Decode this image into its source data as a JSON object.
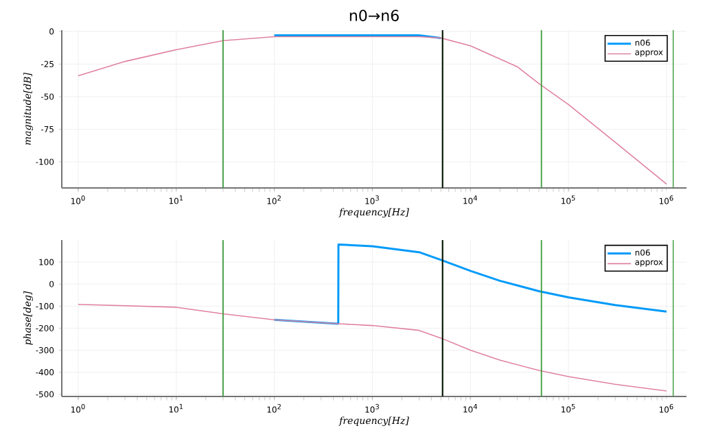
{
  "chart_data": [
    {
      "type": "line",
      "title": "n0→n6",
      "xlabel": "frequency[Hz]",
      "ylabel": "magnitude[dB]",
      "log": "x",
      "grid": true,
      "legend": "top right",
      "x": [
        1,
        3,
        10,
        30,
        100,
        300,
        1000,
        3000,
        5000,
        10000,
        30000,
        50000,
        100000,
        300000,
        1000000
      ],
      "xlim": [
        0.68,
        1600000
      ],
      "xticks": [
        {
          "value": 1,
          "label": "10$^{0}$"
        },
        {
          "value": 10,
          "label": "10$^{1}$"
        },
        {
          "value": 100,
          "label": "10$^{2}$"
        },
        {
          "value": 1000,
          "label": "10$^{3}$"
        },
        {
          "value": 10000,
          "label": "10$^{4}$"
        },
        {
          "value": 100000,
          "label": "10$^{5}$"
        },
        {
          "value": 1000000,
          "label": "10$^{6}$"
        }
      ],
      "ylim": [
        -120,
        1
      ],
      "yticks": [
        -100,
        -75,
        -50,
        -25,
        0
      ],
      "series": [
        {
          "name": "n06",
          "color": "#009af9",
          "x": [
            100,
            300,
            1000,
            3000,
            5000
          ],
          "values": [
            -3,
            -3,
            -3,
            -3,
            -5
          ]
        },
        {
          "name": "approx",
          "color": "#e0829f",
          "values": [
            -34,
            -23,
            -14,
            -7,
            -4,
            -4,
            -4,
            -4,
            -5,
            -11,
            -27,
            -40,
            -56,
            -85,
            -117
          ]
        }
      ],
      "ref_lines": [
        {
          "axis": "x",
          "value": 30,
          "color": "#3a9a3a"
        },
        {
          "axis": "x",
          "value": 5200,
          "color": "#3a9a3a"
        },
        {
          "axis": "x",
          "value": 5200,
          "color": "#000000"
        },
        {
          "axis": "x",
          "value": 53000,
          "color": "#3a9a3a"
        },
        {
          "axis": "x",
          "value": 1170000,
          "color": "#3a9a3a"
        }
      ]
    },
    {
      "type": "line",
      "xlabel": "frequency[Hz]",
      "ylabel": "phase[deg]",
      "log": "x",
      "grid": true,
      "legend": "top right",
      "xlim": [
        0.68,
        1600000
      ],
      "xticks": [
        {
          "value": 1,
          "label": "10$^{0}$"
        },
        {
          "value": 10,
          "label": "10$^{1}$"
        },
        {
          "value": 100,
          "label": "10$^{2}$"
        },
        {
          "value": 1000,
          "label": "10$^{3}$"
        },
        {
          "value": 10000,
          "label": "10$^{4}$"
        },
        {
          "value": 100000,
          "label": "10$^{5}$"
        },
        {
          "value": 1000000,
          "label": "10$^{6}$"
        }
      ],
      "ylim": [
        -510,
        200
      ],
      "yticks": [
        -500,
        -400,
        -300,
        -200,
        -100,
        0,
        100
      ],
      "series": [
        {
          "name": "n06",
          "color": "#009af9",
          "x": [
            100,
            449,
            451,
            1000,
            3000,
            5000,
            10000,
            20000,
            50000,
            100000,
            300000,
            1000000
          ],
          "values": [
            -162,
            -180,
            180,
            172,
            145,
            110,
            60,
            15,
            -32,
            -60,
            -95,
            -125
          ]
        },
        {
          "name": "approx",
          "color": "#e0829f",
          "x": [
            1,
            10,
            30,
            100,
            450,
            1000,
            3000,
            5000,
            10000,
            20000,
            50000,
            100000,
            300000,
            1000000
          ],
          "values": [
            -92,
            -105,
            -135,
            -162,
            -180,
            -188,
            -210,
            -245,
            -300,
            -345,
            -392,
            -420,
            -455,
            -485
          ]
        }
      ],
      "ref_lines": [
        {
          "axis": "x",
          "value": 30,
          "color": "#3a9a3a"
        },
        {
          "axis": "x",
          "value": 5200,
          "color": "#3a9a3a"
        },
        {
          "axis": "x",
          "value": 5200,
          "color": "#000000"
        },
        {
          "axis": "x",
          "value": 53000,
          "color": "#3a9a3a"
        },
        {
          "axis": "x",
          "value": 1170000,
          "color": "#3a9a3a"
        }
      ]
    }
  ]
}
